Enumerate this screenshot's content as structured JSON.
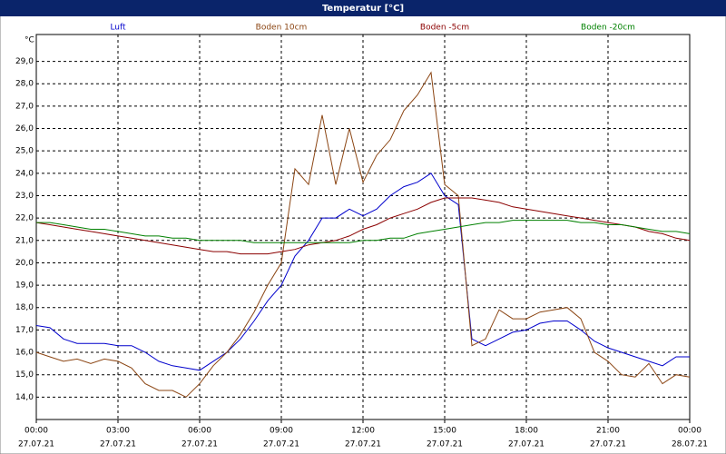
{
  "chart_data": {
    "type": "line",
    "title": "Temperatur [°C]",
    "y_label": "°C",
    "x": [
      0,
      0.5,
      1,
      1.5,
      2,
      2.5,
      3,
      3.5,
      4,
      4.5,
      5,
      5.5,
      6,
      6.5,
      7,
      7.5,
      8,
      8.5,
      9,
      9.5,
      10,
      10.5,
      11,
      11.5,
      12,
      12.5,
      13,
      13.5,
      14,
      14.5,
      15,
      15.5,
      16,
      16.5,
      17,
      17.5,
      18,
      18.5,
      19,
      19.5,
      20,
      20.5,
      21,
      21.5,
      22,
      22.5,
      23,
      23.5,
      24
    ],
    "xlim": [
      0,
      24
    ],
    "xticks": [
      {
        "value": 0,
        "label": "00:00",
        "date": "27.07.21"
      },
      {
        "value": 3,
        "label": "03:00",
        "date": "27.07.21"
      },
      {
        "value": 6,
        "label": "06:00",
        "date": "27.07.21"
      },
      {
        "value": 9,
        "label": "09:00",
        "date": "27.07.21"
      },
      {
        "value": 12,
        "label": "12:00",
        "date": "27.07.21"
      },
      {
        "value": 15,
        "label": "15:00",
        "date": "27.07.21"
      },
      {
        "value": 18,
        "label": "18:00",
        "date": "27.07.21"
      },
      {
        "value": 21,
        "label": "21:00",
        "date": "27.07.21"
      },
      {
        "value": 24,
        "label": "00:00",
        "date": "28.07.21"
      }
    ],
    "ylim": [
      13,
      30.2
    ],
    "yticks": [
      {
        "value": 14,
        "label": "14,0"
      },
      {
        "value": 15,
        "label": "15,0"
      },
      {
        "value": 16,
        "label": "16,0"
      },
      {
        "value": 17,
        "label": "17,0"
      },
      {
        "value": 18,
        "label": "18,0"
      },
      {
        "value": 19,
        "label": "19,0"
      },
      {
        "value": 20,
        "label": "20,0"
      },
      {
        "value": 21,
        "label": "21,0"
      },
      {
        "value": 22,
        "label": "22,0"
      },
      {
        "value": 23,
        "label": "23,0"
      },
      {
        "value": 24,
        "label": "24,0"
      },
      {
        "value": 25,
        "label": "25,0"
      },
      {
        "value": 26,
        "label": "26,0"
      },
      {
        "value": 27,
        "label": "27,0"
      },
      {
        "value": 28,
        "label": "28,0"
      },
      {
        "value": 29,
        "label": "29,0"
      }
    ],
    "grid": true,
    "series": [
      {
        "name": "Luft",
        "color": "#0000cc",
        "values": [
          17.2,
          17.1,
          16.6,
          16.4,
          16.4,
          16.4,
          16.3,
          16.3,
          16.0,
          15.6,
          15.4,
          15.3,
          15.2,
          15.6,
          16.0,
          16.6,
          17.4,
          18.3,
          19.0,
          20.3,
          21.0,
          22.0,
          22.0,
          22.4,
          22.1,
          22.4,
          23.0,
          23.4,
          23.6,
          24.0,
          23.0,
          22.6,
          16.6,
          16.3,
          16.6,
          16.9,
          17.0,
          17.3,
          17.4,
          17.4,
          17.0,
          16.5,
          16.2,
          16.0,
          15.8,
          15.6,
          15.4,
          15.8,
          15.8
        ]
      },
      {
        "name": "Boden 10cm",
        "color": "#8b4513",
        "values": [
          16.0,
          15.8,
          15.6,
          15.7,
          15.5,
          15.7,
          15.6,
          15.3,
          14.6,
          14.3,
          14.3,
          14.0,
          14.6,
          15.4,
          16.0,
          16.8,
          17.8,
          19.0,
          20.0,
          24.2,
          23.5,
          26.6,
          23.5,
          26.0,
          23.6,
          24.8,
          25.5,
          26.8,
          27.5,
          28.5,
          23.5,
          23.0,
          16.3,
          16.6,
          17.9,
          17.5,
          17.5,
          17.8,
          17.9,
          18.0,
          17.5,
          16.0,
          15.6,
          15.0,
          14.9,
          15.5,
          14.6,
          15.0,
          14.9
        ]
      },
      {
        "name": "Boden -5cm",
        "color": "#8b0000",
        "values": [
          21.8,
          21.7,
          21.6,
          21.5,
          21.4,
          21.3,
          21.2,
          21.1,
          21.0,
          20.9,
          20.8,
          20.7,
          20.6,
          20.5,
          20.5,
          20.4,
          20.4,
          20.4,
          20.5,
          20.6,
          20.8,
          20.9,
          21.0,
          21.2,
          21.5,
          21.7,
          22.0,
          22.2,
          22.4,
          22.7,
          22.9,
          22.9,
          22.9,
          22.8,
          22.7,
          22.5,
          22.4,
          22.3,
          22.2,
          22.1,
          22.0,
          21.9,
          21.8,
          21.7,
          21.6,
          21.4,
          21.3,
          21.1,
          21.0
        ]
      },
      {
        "name": "Boden -20cm",
        "color": "#008000",
        "values": [
          21.8,
          21.8,
          21.7,
          21.6,
          21.5,
          21.5,
          21.4,
          21.3,
          21.2,
          21.2,
          21.1,
          21.1,
          21.0,
          21.0,
          21.0,
          21.0,
          20.9,
          20.9,
          20.9,
          20.9,
          20.9,
          20.9,
          20.9,
          20.9,
          21.0,
          21.0,
          21.1,
          21.1,
          21.3,
          21.4,
          21.5,
          21.6,
          21.7,
          21.8,
          21.8,
          21.9,
          21.9,
          21.9,
          21.9,
          21.9,
          21.8,
          21.8,
          21.7,
          21.7,
          21.6,
          21.5,
          21.4,
          21.4,
          21.3
        ]
      }
    ]
  }
}
